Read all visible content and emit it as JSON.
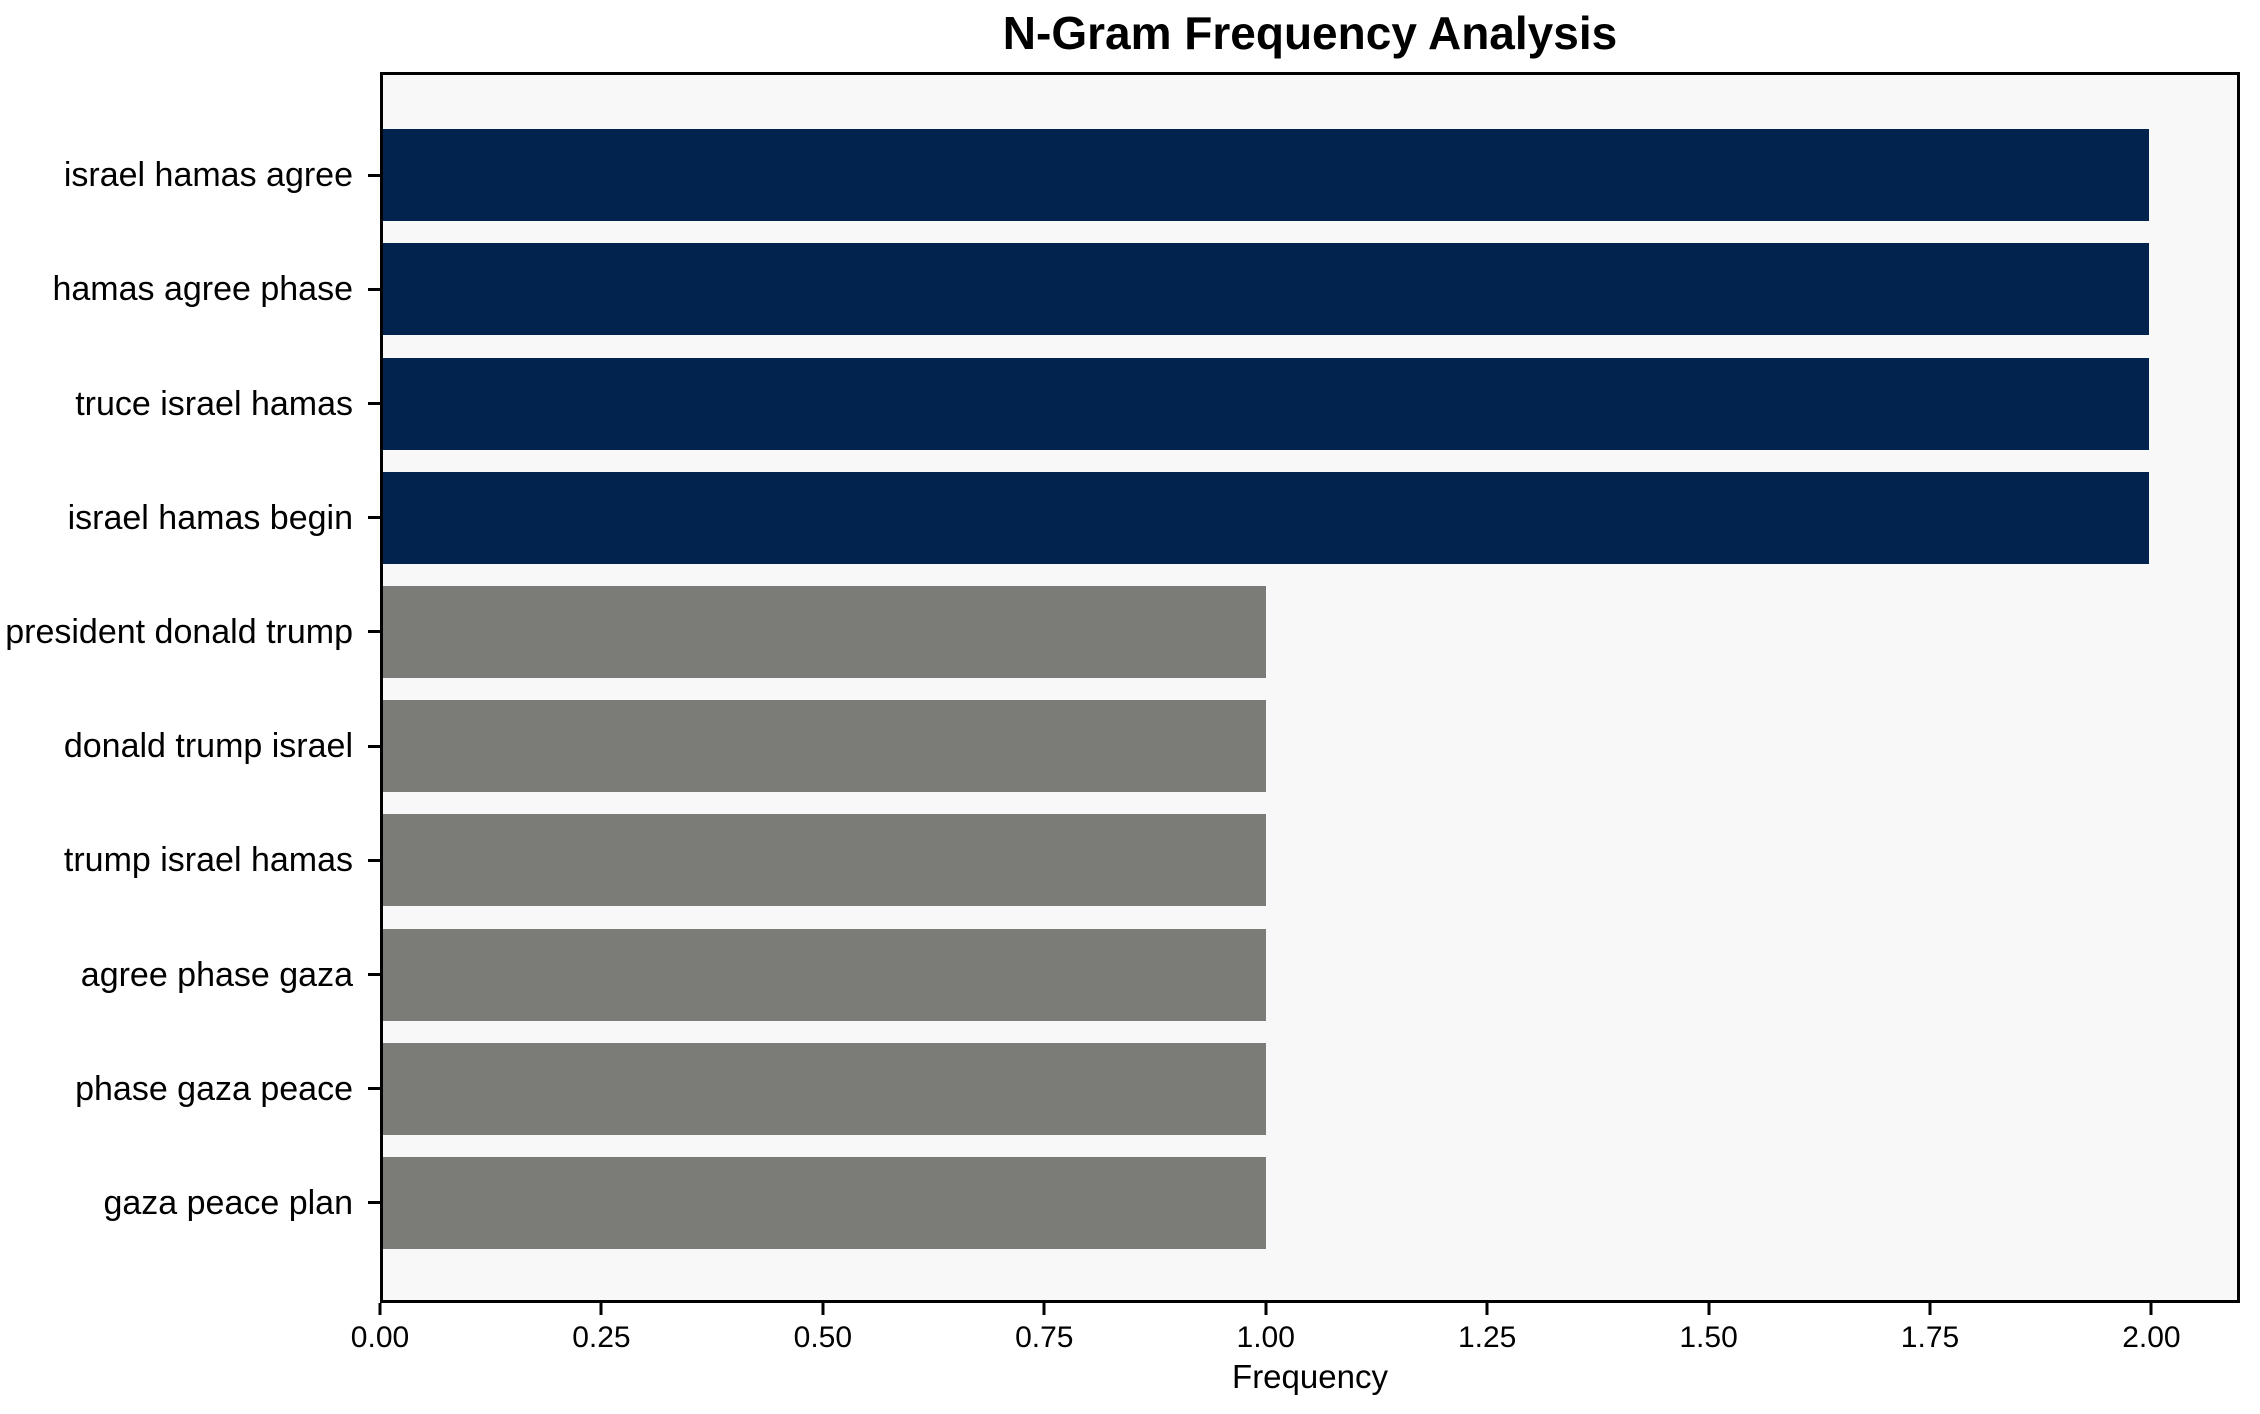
{
  "chart_data": {
    "type": "bar",
    "orientation": "horizontal",
    "title": "N-Gram Frequency Analysis",
    "xlabel": "Frequency",
    "ylabel": "",
    "categories": [
      "israel hamas agree",
      "hamas agree phase",
      "truce israel hamas",
      "israel hamas begin",
      "president donald trump",
      "donald trump israel",
      "trump israel hamas",
      "agree phase gaza",
      "phase gaza peace",
      "gaza peace plan"
    ],
    "values": [
      2,
      2,
      2,
      2,
      1,
      1,
      1,
      1,
      1,
      1
    ],
    "bar_colors": [
      "#02234E",
      "#02234E",
      "#02234E",
      "#02234E",
      "#7B7B78",
      "#7B7B78",
      "#7B7B78",
      "#7B7B78",
      "#7B7B78",
      "#7B7B78"
    ],
    "xlim": [
      0,
      2.1
    ],
    "xtick_values": [
      0,
      0.25,
      0.5,
      0.75,
      1.0,
      1.25,
      1.5,
      1.75,
      2.0
    ],
    "xtick_labels": [
      "0.00",
      "0.25",
      "0.50",
      "0.75",
      "1.00",
      "1.25",
      "1.50",
      "1.75",
      "2.00"
    ],
    "grid": false,
    "legend": null,
    "colors": {
      "highlight_bar": "#02234E",
      "default_bar": "#7B7B78",
      "plot_background": "#F8F8F8",
      "figure_background": "#FFFFFF",
      "spine": "#000000",
      "text": "#000000"
    }
  }
}
